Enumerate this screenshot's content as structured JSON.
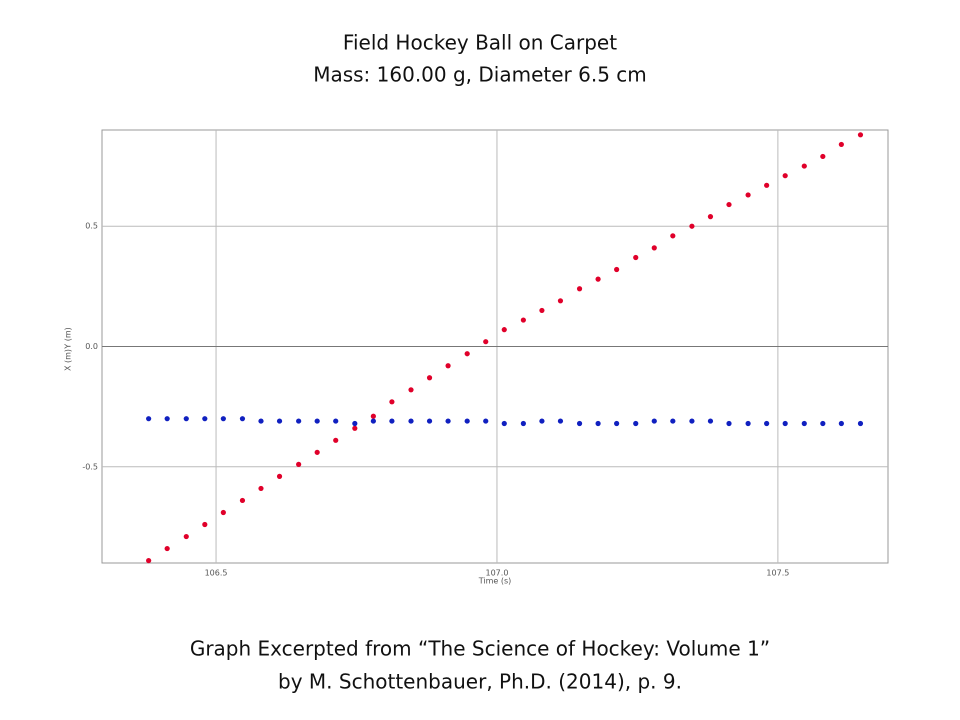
{
  "chart_data": {
    "type": "scatter",
    "title": "Field Hockey Ball on Carpet",
    "subtitle": "Mass: 160.00 g, Diameter 6.5 cm",
    "x_label": "Time (s)",
    "caption": [
      "Graph Excerpted from “The Science of Hockey: Volume 1”",
      "by M. Schottenbauer, Ph.D. (2014), p. 9."
    ],
    "x": [
      106.38,
      106.413,
      106.447,
      106.48,
      106.513,
      106.547,
      106.58,
      106.613,
      106.647,
      106.68,
      106.713,
      106.747,
      106.78,
      106.813,
      106.847,
      106.88,
      106.913,
      106.947,
      106.98,
      107.013,
      107.047,
      107.08,
      107.113,
      107.147,
      107.18,
      107.213,
      107.247,
      107.28,
      107.313,
      107.347,
      107.38,
      107.413,
      107.447,
      107.48,
      107.513,
      107.547,
      107.58,
      107.613,
      107.647
    ],
    "series": [
      {
        "name": "X (m)",
        "color": "#e0002a",
        "values": [
          -0.89,
          -0.84,
          -0.79,
          -0.74,
          -0.69,
          -0.64,
          -0.59,
          -0.54,
          -0.49,
          -0.44,
          -0.39,
          -0.34,
          -0.29,
          -0.23,
          -0.18,
          -0.13,
          -0.08,
          -0.03,
          0.02,
          0.07,
          0.11,
          0.15,
          0.19,
          0.24,
          0.28,
          0.32,
          0.37,
          0.41,
          0.46,
          0.5,
          0.54,
          0.59,
          0.63,
          0.67,
          0.71,
          0.75,
          0.79,
          0.84,
          0.88
        ]
      },
      {
        "name": "Y (m)",
        "color": "#1020c0",
        "values": [
          -0.3,
          -0.3,
          -0.3,
          -0.3,
          -0.3,
          -0.3,
          -0.31,
          -0.31,
          -0.31,
          -0.31,
          -0.31,
          -0.32,
          -0.31,
          -0.31,
          -0.31,
          -0.31,
          -0.31,
          -0.31,
          -0.31,
          -0.32,
          -0.32,
          -0.31,
          -0.31,
          -0.32,
          -0.32,
          -0.32,
          -0.32,
          -0.31,
          -0.31,
          -0.31,
          -0.31,
          -0.32,
          -0.32,
          -0.32,
          -0.32,
          -0.32,
          -0.32,
          -0.32,
          -0.32
        ]
      }
    ],
    "xlim": [
      106.297,
      107.696
    ],
    "ylim": [
      -0.9,
      0.9
    ],
    "xticks": [
      106.5,
      {
        "value": 107,
        "label": "107.0"
      },
      107.5
    ],
    "yticks": [
      0.5,
      {
        "value": 0,
        "label": "0.0"
      },
      -0.5
    ],
    "grid": true
  }
}
